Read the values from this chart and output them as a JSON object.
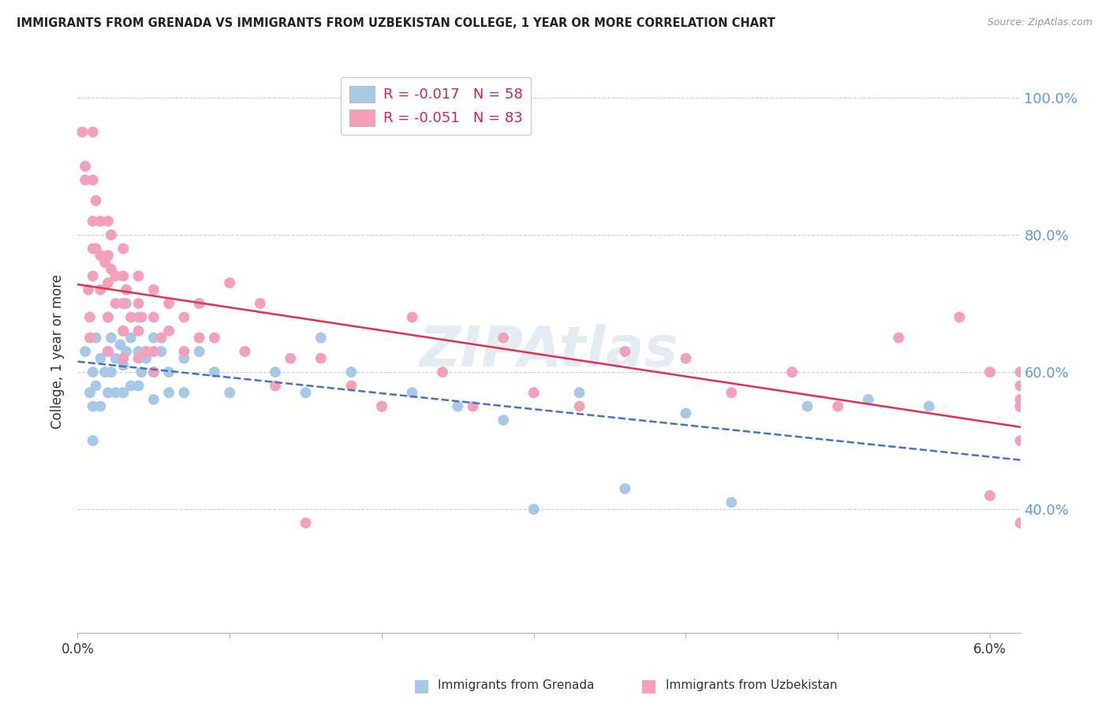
{
  "title": "IMMIGRANTS FROM GRENADA VS IMMIGRANTS FROM UZBEKISTAN COLLEGE, 1 YEAR OR MORE CORRELATION CHART",
  "source": "Source: ZipAtlas.com",
  "ylabel": "College, 1 year or more",
  "xlim": [
    0.0,
    0.062
  ],
  "ylim": [
    0.22,
    1.04
  ],
  "legend_grenada": "R = -0.017   N = 58",
  "legend_uzbekistan": "R = -0.051   N = 83",
  "color_grenada": "#a8c8e8",
  "color_uzbekistan": "#f4a0b8",
  "line_color_grenada": "#4472c4",
  "line_color_uzbekistan": "#e03050",
  "yticks": [
    0.4,
    0.6,
    0.8,
    1.0
  ],
  "yticklabels": [
    "40.0%",
    "60.0%",
    "80.0%",
    "100.0%"
  ],
  "xtick_labels": [
    "0.0%",
    "",
    "",
    "",
    "",
    "",
    "6.0%"
  ],
  "xticks": [
    0.0,
    0.01,
    0.02,
    0.03,
    0.04,
    0.05,
    0.06
  ],
  "grenada_x": [
    0.0005,
    0.0008,
    0.001,
    0.001,
    0.001,
    0.0012,
    0.0012,
    0.0015,
    0.0015,
    0.0018,
    0.002,
    0.002,
    0.002,
    0.0022,
    0.0022,
    0.0025,
    0.0025,
    0.0028,
    0.003,
    0.003,
    0.003,
    0.0032,
    0.0032,
    0.0035,
    0.0035,
    0.004,
    0.004,
    0.004,
    0.0042,
    0.0045,
    0.005,
    0.005,
    0.005,
    0.0055,
    0.006,
    0.006,
    0.007,
    0.007,
    0.008,
    0.009,
    0.01,
    0.011,
    0.013,
    0.015,
    0.016,
    0.018,
    0.02,
    0.022,
    0.025,
    0.028,
    0.03,
    0.033,
    0.036,
    0.04,
    0.043,
    0.048,
    0.052,
    0.056
  ],
  "grenada_y": [
    0.63,
    0.57,
    0.6,
    0.55,
    0.5,
    0.65,
    0.58,
    0.62,
    0.55,
    0.6,
    0.68,
    0.63,
    0.57,
    0.65,
    0.6,
    0.62,
    0.57,
    0.64,
    0.66,
    0.61,
    0.57,
    0.7,
    0.63,
    0.65,
    0.58,
    0.68,
    0.63,
    0.58,
    0.6,
    0.62,
    0.65,
    0.6,
    0.56,
    0.63,
    0.6,
    0.57,
    0.62,
    0.57,
    0.63,
    0.6,
    0.57,
    0.63,
    0.6,
    0.57,
    0.65,
    0.6,
    0.55,
    0.57,
    0.55,
    0.53,
    0.4,
    0.57,
    0.43,
    0.54,
    0.41,
    0.55,
    0.56,
    0.55
  ],
  "uzbekistan_x": [
    0.0003,
    0.0005,
    0.0005,
    0.0007,
    0.0008,
    0.0008,
    0.001,
    0.001,
    0.001,
    0.001,
    0.001,
    0.0012,
    0.0012,
    0.0015,
    0.0015,
    0.0015,
    0.0018,
    0.002,
    0.002,
    0.002,
    0.002,
    0.002,
    0.0022,
    0.0022,
    0.0025,
    0.0025,
    0.003,
    0.003,
    0.003,
    0.003,
    0.003,
    0.0032,
    0.0035,
    0.004,
    0.004,
    0.004,
    0.004,
    0.0042,
    0.0045,
    0.005,
    0.005,
    0.005,
    0.005,
    0.0055,
    0.006,
    0.006,
    0.007,
    0.007,
    0.008,
    0.008,
    0.009,
    0.01,
    0.011,
    0.012,
    0.013,
    0.014,
    0.015,
    0.016,
    0.018,
    0.02,
    0.022,
    0.024,
    0.026,
    0.028,
    0.03,
    0.033,
    0.036,
    0.04,
    0.043,
    0.047,
    0.05,
    0.054,
    0.058,
    0.06,
    0.06,
    0.062,
    0.062,
    0.062,
    0.062,
    0.062,
    0.062,
    0.062,
    0.062
  ],
  "uzbekistan_y": [
    0.95,
    0.9,
    0.88,
    0.72,
    0.68,
    0.65,
    0.95,
    0.88,
    0.82,
    0.78,
    0.74,
    0.85,
    0.78,
    0.82,
    0.77,
    0.72,
    0.76,
    0.82,
    0.77,
    0.73,
    0.68,
    0.63,
    0.8,
    0.75,
    0.74,
    0.7,
    0.78,
    0.74,
    0.7,
    0.66,
    0.62,
    0.72,
    0.68,
    0.74,
    0.7,
    0.66,
    0.62,
    0.68,
    0.63,
    0.72,
    0.68,
    0.63,
    0.6,
    0.65,
    0.7,
    0.66,
    0.68,
    0.63,
    0.7,
    0.65,
    0.65,
    0.73,
    0.63,
    0.7,
    0.58,
    0.62,
    0.38,
    0.62,
    0.58,
    0.55,
    0.68,
    0.6,
    0.55,
    0.65,
    0.57,
    0.55,
    0.63,
    0.62,
    0.57,
    0.6,
    0.55,
    0.65,
    0.68,
    0.42,
    0.6,
    0.56,
    0.55,
    0.5,
    0.58,
    0.55,
    0.6,
    0.38,
    0.55
  ],
  "watermark_text": "ZIPAtlas",
  "watermark_color": "#c8d8e8",
  "watermark_alpha": 0.5
}
